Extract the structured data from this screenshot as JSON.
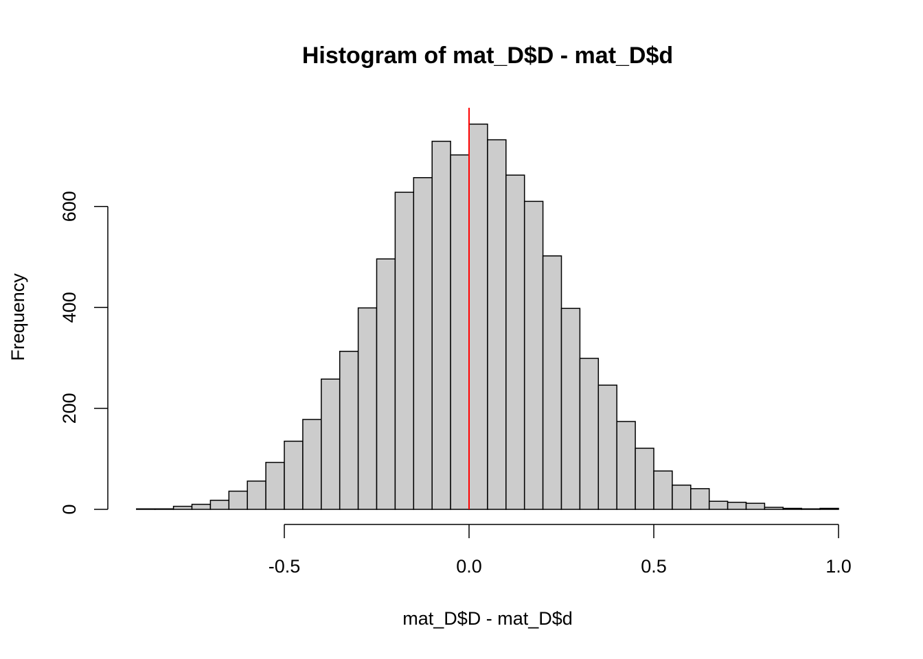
{
  "chart_data": {
    "type": "histogram",
    "title": "Histogram of mat_D$D - mat_D$d",
    "xlabel": "mat_D$D - mat_D$d",
    "ylabel": "Frequency",
    "bin_width": 0.05,
    "bins": [
      {
        "start": -0.9,
        "end": -0.85,
        "count": 1
      },
      {
        "start": -0.85,
        "end": -0.8,
        "count": 1
      },
      {
        "start": -0.8,
        "end": -0.75,
        "count": 6
      },
      {
        "start": -0.75,
        "end": -0.7,
        "count": 10
      },
      {
        "start": -0.7,
        "end": -0.65,
        "count": 18
      },
      {
        "start": -0.65,
        "end": -0.6,
        "count": 36
      },
      {
        "start": -0.6,
        "end": -0.55,
        "count": 56
      },
      {
        "start": -0.55,
        "end": -0.5,
        "count": 93
      },
      {
        "start": -0.5,
        "end": -0.45,
        "count": 135
      },
      {
        "start": -0.45,
        "end": -0.4,
        "count": 178
      },
      {
        "start": -0.4,
        "end": -0.35,
        "count": 258
      },
      {
        "start": -0.35,
        "end": -0.3,
        "count": 313
      },
      {
        "start": -0.3,
        "end": -0.25,
        "count": 399
      },
      {
        "start": -0.25,
        "end": -0.2,
        "count": 496
      },
      {
        "start": -0.2,
        "end": -0.15,
        "count": 628
      },
      {
        "start": -0.15,
        "end": -0.1,
        "count": 657
      },
      {
        "start": -0.1,
        "end": -0.05,
        "count": 729
      },
      {
        "start": -0.05,
        "end": 0.0,
        "count": 702
      },
      {
        "start": 0.0,
        "end": 0.05,
        "count": 763
      },
      {
        "start": 0.05,
        "end": 0.1,
        "count": 732
      },
      {
        "start": 0.1,
        "end": 0.15,
        "count": 662
      },
      {
        "start": 0.15,
        "end": 0.2,
        "count": 610
      },
      {
        "start": 0.2,
        "end": 0.25,
        "count": 502
      },
      {
        "start": 0.25,
        "end": 0.3,
        "count": 398
      },
      {
        "start": 0.3,
        "end": 0.35,
        "count": 299
      },
      {
        "start": 0.35,
        "end": 0.4,
        "count": 246
      },
      {
        "start": 0.4,
        "end": 0.45,
        "count": 174
      },
      {
        "start": 0.45,
        "end": 0.5,
        "count": 121
      },
      {
        "start": 0.5,
        "end": 0.55,
        "count": 76
      },
      {
        "start": 0.55,
        "end": 0.6,
        "count": 48
      },
      {
        "start": 0.6,
        "end": 0.65,
        "count": 41
      },
      {
        "start": 0.65,
        "end": 0.7,
        "count": 16
      },
      {
        "start": 0.7,
        "end": 0.75,
        "count": 14
      },
      {
        "start": 0.75,
        "end": 0.8,
        "count": 12
      },
      {
        "start": 0.8,
        "end": 0.85,
        "count": 4
      },
      {
        "start": 0.85,
        "end": 0.9,
        "count": 2
      },
      {
        "start": 0.9,
        "end": 0.95,
        "count": 1
      },
      {
        "start": 0.95,
        "end": 1.0,
        "count": 2
      }
    ],
    "x_ticks": [
      -0.5,
      0.0,
      0.5,
      1.0
    ],
    "x_tick_labels": [
      "-0.5",
      "0.0",
      "0.5",
      "1.0"
    ],
    "y_ticks": [
      0,
      200,
      400,
      600
    ],
    "y_tick_labels": [
      "0",
      "200",
      "400",
      "600"
    ],
    "xlim": [
      -0.9,
      1.0
    ],
    "ylim": [
      0,
      800
    ],
    "reference_line": {
      "x": 0.0,
      "color": "#ff0000"
    },
    "bar_color": "#cccccc",
    "grid": false
  }
}
